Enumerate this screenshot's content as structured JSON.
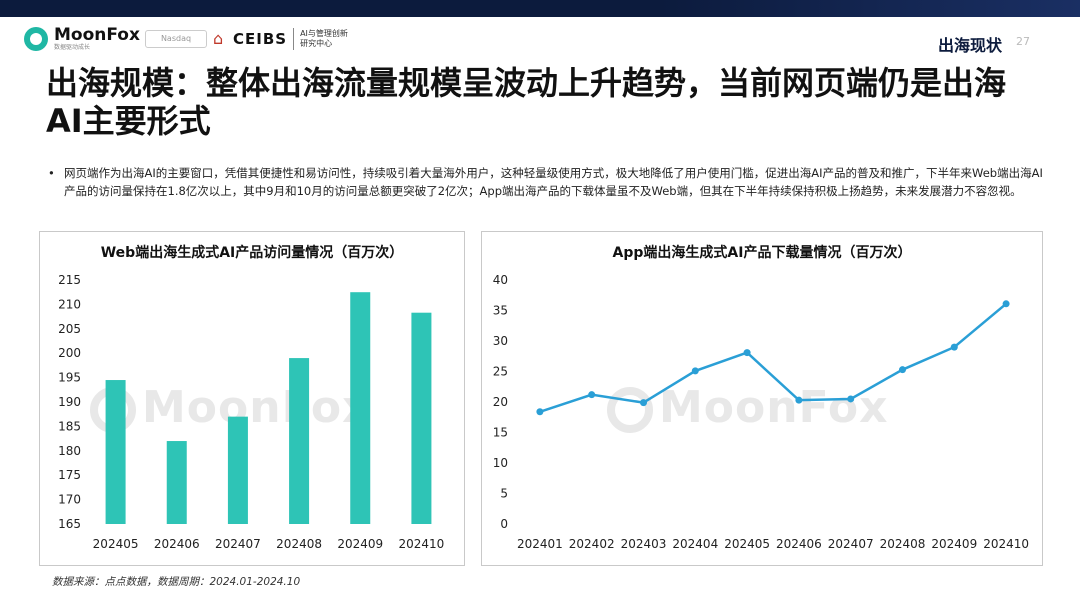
{
  "header": {
    "brand": "MoonFox",
    "brand_sub": "数据驱动成长",
    "partner": "Nasdaq",
    "ceibs": "CEIBS",
    "ceibs_cn_line1": "AI与管理创新",
    "ceibs_cn_line2": "研究中心",
    "section": "出海现状",
    "page": "27"
  },
  "title": "出海规模：整体出海流量规模呈波动上升趋势，当前网页端仍是出海AI主要形式",
  "bullet": "网页端作为出海AI的主要窗口，凭借其便捷性和易访问性，持续吸引着大量海外用户，这种轻量级使用方式，极大地降低了用户使用门槛，促进出海AI产品的普及和推广，下半年来Web端出海AI产品的访问量保持在1.8亿次以上，其中9月和10月的访问量总额更突破了2亿次；App端出海产品的下载体量虽不及Web端，但其在下半年持续保持积极上扬趋势，未来发展潜力不容忽视。",
  "watermark": "MoonFox",
  "source": "数据来源：点点数据，数据周期：2024.01-2024.10",
  "colors": {
    "accent": "#2ec4b6",
    "line": "#2a9fd6"
  },
  "chart_data": [
    {
      "type": "bar",
      "title": "Web端出海生成式AI产品访问量情况（百万次）",
      "categories": [
        "202405",
        "202406",
        "202407",
        "202408",
        "202409",
        "202410"
      ],
      "values": [
        194.5,
        182,
        187,
        199,
        212.5,
        208.3
      ],
      "ylim": [
        165,
        215
      ],
      "yticks": [
        165,
        170,
        175,
        180,
        185,
        190,
        195,
        200,
        205,
        210,
        215
      ],
      "xlabel": "",
      "ylabel": "",
      "grid": false
    },
    {
      "type": "line",
      "title": "App端出海生成式AI产品下载量情况（百万次）",
      "categories": [
        "202401",
        "202402",
        "202403",
        "202404",
        "202405",
        "202406",
        "202407",
        "202408",
        "202409",
        "202410"
      ],
      "values": [
        18.4,
        21.2,
        19.9,
        25.1,
        28.1,
        20.3,
        20.5,
        25.3,
        29.0,
        36.1
      ],
      "ylim": [
        0,
        40
      ],
      "yticks": [
        0,
        5,
        10,
        15,
        20,
        25,
        30,
        35,
        40
      ],
      "xlabel": "",
      "ylabel": "",
      "grid": false
    }
  ]
}
